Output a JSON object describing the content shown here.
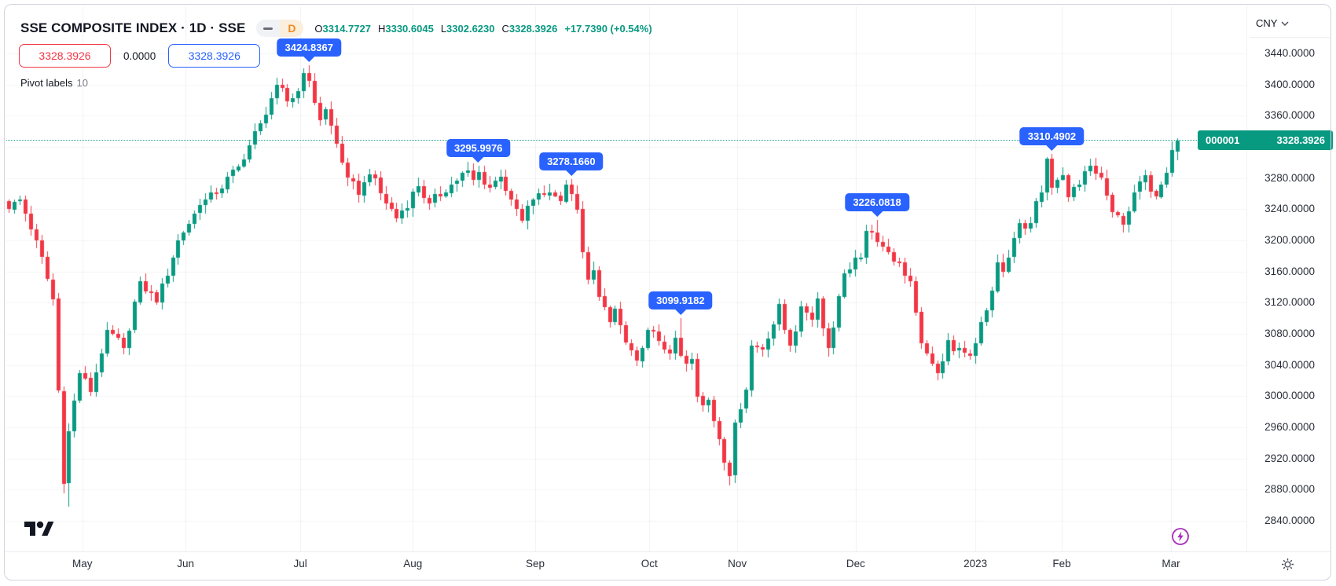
{
  "header": {
    "symbol_title": "SSE COMPOSITE INDEX · 1D · SSE",
    "interval": "D",
    "ohlc": {
      "open_label": "O",
      "open": "3314.7727",
      "high_label": "H",
      "high": "3330.6045",
      "low_label": "L",
      "low": "3302.6230",
      "close_label": "C",
      "close": "3328.3926",
      "change": "+17.7390 (+0.54%)"
    },
    "price_boxes": {
      "red": "3328.3926",
      "middle": "0.0000",
      "blue": "3328.3926"
    },
    "indicator": {
      "name": "Pivot labels",
      "value": "10"
    }
  },
  "price_scale": {
    "currency": "CNY",
    "ticks": [
      "3440.0000",
      "3400.0000",
      "3360.0000",
      "3320.0000",
      "3280.0000",
      "3240.0000",
      "3200.0000",
      "3160.0000",
      "3120.0000",
      "3080.0000",
      "3040.0000",
      "3000.0000",
      "2960.0000",
      "2920.0000",
      "2880.0000",
      "2840.0000"
    ],
    "tick_values": [
      3440,
      3400,
      3360,
      3320,
      3280,
      3240,
      3200,
      3160,
      3120,
      3080,
      3040,
      3000,
      2960,
      2920,
      2880,
      2840
    ]
  },
  "time_scale": {
    "labels": [
      {
        "label": "May",
        "day": 13.5
      },
      {
        "label": "Jun",
        "day": 32.4
      },
      {
        "label": "Jul",
        "day": 53.4
      },
      {
        "label": "Aug",
        "day": 74.0
      },
      {
        "label": "Sep",
        "day": 96.4
      },
      {
        "label": "Oct",
        "day": 117.3
      },
      {
        "label": "Nov",
        "day": 133.4
      },
      {
        "label": "Dec",
        "day": 155.1
      },
      {
        "label": "2023",
        "day": 177.0
      },
      {
        "label": "Feb",
        "day": 192.8
      },
      {
        "label": "Mar",
        "day": 212.8
      }
    ]
  },
  "price_tag": {
    "symbol": "000001",
    "price": "3328.3926"
  },
  "chart_data": {
    "type": "candlestick",
    "title": "SSE Composite Index, 1D",
    "ylim": [
      2840,
      3440
    ],
    "num_days": 215,
    "grid": true,
    "up_color": "#089981",
    "down_color": "#F23645",
    "current_price": 3328.3926,
    "anchors": [
      [
        0,
        3240
      ],
      [
        2,
        3252
      ],
      [
        5,
        3200
      ],
      [
        8,
        3125
      ],
      [
        10,
        2888
      ],
      [
        11,
        2955
      ],
      [
        13,
        3030
      ],
      [
        15,
        3005
      ],
      [
        18,
        3085
      ],
      [
        21,
        3062
      ],
      [
        24,
        3148
      ],
      [
        27,
        3120
      ],
      [
        31,
        3200
      ],
      [
        35,
        3245
      ],
      [
        38,
        3260
      ],
      [
        42,
        3295
      ],
      [
        46,
        3350
      ],
      [
        49,
        3400
      ],
      [
        51,
        3378
      ],
      [
        53,
        3392
      ],
      [
        54,
        3415
      ],
      [
        55,
        3405
      ],
      [
        57,
        3355
      ],
      [
        58,
        3368
      ],
      [
        62,
        3280
      ],
      [
        64,
        3258
      ],
      [
        66,
        3285
      ],
      [
        68,
        3260
      ],
      [
        71,
        3228
      ],
      [
        75,
        3270
      ],
      [
        77,
        3248
      ],
      [
        81,
        3272
      ],
      [
        84,
        3290
      ],
      [
        85,
        3278
      ],
      [
        86,
        3288
      ],
      [
        88,
        3268
      ],
      [
        90,
        3282
      ],
      [
        92,
        3252
      ],
      [
        94,
        3225
      ],
      [
        96,
        3252
      ],
      [
        99,
        3262
      ],
      [
        101,
        3250
      ],
      [
        102,
        3272
      ],
      [
        103,
        3260
      ],
      [
        104,
        3240
      ],
      [
        105,
        3185
      ],
      [
        106,
        3150
      ],
      [
        107,
        3162
      ],
      [
        108,
        3128
      ],
      [
        110,
        3095
      ],
      [
        111,
        3112
      ],
      [
        113,
        3068
      ],
      [
        115,
        3045
      ],
      [
        116,
        3062
      ],
      [
        117,
        3085
      ],
      [
        119,
        3070
      ],
      [
        121,
        3055
      ],
      [
        122,
        3075
      ],
      [
        123,
        3052
      ],
      [
        124,
        3042
      ],
      [
        125,
        3048
      ],
      [
        126,
        3000
      ],
      [
        127,
        2988
      ],
      [
        128,
        2995
      ],
      [
        129,
        2968
      ],
      [
        130,
        2945
      ],
      [
        131,
        2915
      ],
      [
        132,
        2898
      ],
      [
        133,
        2966
      ],
      [
        135,
        3008
      ],
      [
        136,
        3065
      ],
      [
        138,
        3060
      ],
      [
        140,
        3092
      ],
      [
        141,
        3118
      ],
      [
        143,
        3065
      ],
      [
        145,
        3115
      ],
      [
        147,
        3098
      ],
      [
        148,
        3125
      ],
      [
        150,
        3062
      ],
      [
        151,
        3088
      ],
      [
        152,
        3128
      ],
      [
        153,
        3158
      ],
      [
        155,
        3178
      ],
      [
        156,
        3178
      ],
      [
        157,
        3212
      ],
      [
        158,
        3210
      ],
      [
        159,
        3198
      ],
      [
        161,
        3185
      ],
      [
        163,
        3172
      ],
      [
        165,
        3148
      ],
      [
        166,
        3108
      ],
      [
        167,
        3068
      ],
      [
        168,
        3055
      ],
      [
        169,
        3042
      ],
      [
        170,
        3030
      ],
      [
        172,
        3072
      ],
      [
        173,
        3058
      ],
      [
        175,
        3055
      ],
      [
        176,
        3052
      ],
      [
        177,
        3068
      ],
      [
        178,
        3095
      ],
      [
        179,
        3110
      ],
      [
        180,
        3135
      ],
      [
        181,
        3172
      ],
      [
        182,
        3160
      ],
      [
        183,
        3178
      ],
      [
        185,
        3222
      ],
      [
        186,
        3215
      ],
      [
        187,
        3222
      ],
      [
        188,
        3250
      ],
      [
        189,
        3262
      ],
      [
        190,
        3305
      ],
      [
        191,
        3268
      ],
      [
        193,
        3284
      ],
      [
        194,
        3256
      ],
      [
        196,
        3272
      ],
      [
        198,
        3296
      ],
      [
        200,
        3280
      ],
      [
        202,
        3236
      ],
      [
        204,
        3220
      ],
      [
        206,
        3262
      ],
      [
        208,
        3284
      ],
      [
        210,
        3256
      ],
      [
        211,
        3272
      ],
      [
        213,
        3316
      ],
      [
        214,
        3328.39
      ]
    ],
    "pivot_highs": [
      {
        "day": 55,
        "value": 3424.8367,
        "label": "3424.8367"
      },
      {
        "day": 86,
        "value": 3295.9976,
        "label": "3295.9976"
      },
      {
        "day": 103,
        "value": 3278.166,
        "label": "3278.1660"
      },
      {
        "day": 123,
        "value": 3099.9182,
        "label": "3099.9182"
      },
      {
        "day": 159,
        "value": 3226.0818,
        "label": "3226.0818"
      },
      {
        "day": 191,
        "value": 3310.4902,
        "label": "3310.4902"
      }
    ],
    "low_overrides": {
      "10": 2875,
      "11": 2858,
      "132": 2885
    },
    "last_candle": {
      "day": 214,
      "open": 3314.7727,
      "high": 3330.6045,
      "low": 3302.623,
      "close": 3328.3926
    }
  },
  "colors": {
    "accent_blue": "#2962FF",
    "up": "#089981",
    "down": "#F23645",
    "text": "#131722",
    "muted": "#787B86",
    "interval_orange": "#F28B1F",
    "purple": "#A62DB9"
  }
}
